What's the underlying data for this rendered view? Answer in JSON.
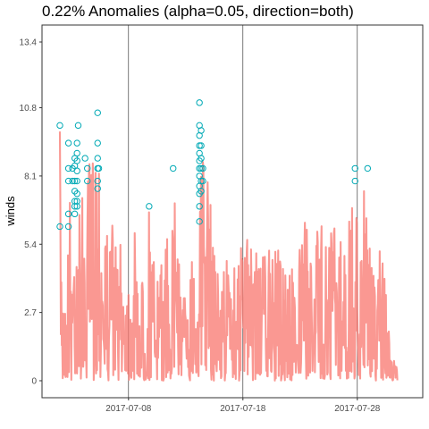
{
  "chart_data": {
    "type": "line",
    "title": "0.22% Anomalies (alpha=0.05, direction=both)",
    "xlabel": "",
    "ylabel": "winds",
    "x_range": [
      "2017-07-02",
      "2017-07-31"
    ],
    "ylim": [
      -0.67,
      14.07
    ],
    "y_ticks": [
      0,
      2.7,
      5.4,
      8.1,
      10.8,
      13.4
    ],
    "y_tick_labels": [
      "0",
      "2.7",
      "5.4",
      "8.1",
      "10.8",
      "13.4"
    ],
    "x_ticks": [
      "2017-07-08",
      "2017-07-18",
      "2017-07-28"
    ],
    "x_tick_labels": [
      "2017-07-08",
      "2017-07-18",
      "2017-07-28"
    ],
    "grid": false,
    "line_color": "#f8766d",
    "line_opacity": 0.75,
    "anomaly_color": "#00a9b5",
    "series": [
      {
        "values": [
          [
            0.0,
            10.1
          ],
          [
            0.15,
            6.1
          ],
          [
            0.5,
            2.7
          ],
          [
            0.75,
            7.0
          ],
          [
            0.9,
            9.4
          ],
          [
            1.0,
            8.1
          ],
          [
            1.1,
            6.7
          ],
          [
            1.2,
            7.6
          ],
          [
            1.3,
            8.5
          ],
          [
            1.4,
            6.8
          ],
          [
            1.5,
            9.0
          ],
          [
            1.6,
            10.1
          ],
          [
            1.7,
            7.2
          ],
          [
            1.8,
            4.0
          ],
          [
            2.0,
            8.3
          ],
          [
            2.2,
            5.0
          ],
          [
            2.5,
            8.6
          ],
          [
            3.2,
            9.0
          ],
          [
            3.4,
            10.5
          ],
          [
            3.6,
            8.4
          ],
          [
            4.0,
            5.8
          ],
          [
            4.5,
            7.2
          ],
          [
            5.0,
            4.8
          ],
          [
            5.5,
            6.0
          ],
          [
            6.0,
            4.4
          ],
          [
            6.5,
            6.2
          ],
          [
            7.0,
            3.6
          ],
          [
            7.8,
            6.8
          ],
          [
            8.5,
            4.2
          ],
          [
            9.3,
            5.5
          ],
          [
            10.0,
            8.4
          ],
          [
            10.5,
            4.6
          ],
          [
            11.0,
            3.2
          ],
          [
            11.5,
            5.4
          ],
          [
            12.0,
            6.1
          ],
          [
            12.1,
            7.0
          ],
          [
            12.2,
            8.3
          ],
          [
            12.3,
            9.0
          ],
          [
            12.4,
            9.8
          ],
          [
            12.5,
            11.0
          ],
          [
            12.7,
            8.1
          ],
          [
            13.0,
            8.3
          ],
          [
            13.4,
            6.0
          ],
          [
            14.0,
            3.5
          ],
          [
            14.5,
            5.5
          ],
          [
            15.0,
            4.0
          ],
          [
            16.0,
            6.0
          ],
          [
            17.0,
            5.0
          ],
          [
            17.5,
            5.5
          ],
          [
            18.5,
            6.0
          ],
          [
            19.5,
            5.0
          ],
          [
            20.5,
            4.5
          ],
          [
            21.5,
            6.5
          ],
          [
            22.0,
            5.2
          ],
          [
            22.5,
            6.4
          ],
          [
            23.3,
            6.2
          ],
          [
            24.2,
            6.2
          ],
          [
            25.0,
            5.0
          ],
          [
            25.5,
            8.3
          ],
          [
            25.7,
            5.8
          ],
          [
            26.5,
            8.4
          ],
          [
            27.0,
            5.5
          ],
          [
            27.5,
            4.2
          ],
          [
            28.0,
            5.4
          ],
          [
            28.5,
            3.7
          ],
          [
            29.0,
            1.0
          ],
          [
            29.5,
            0.5
          ]
        ]
      }
    ],
    "anomalies": [
      [
        0.0,
        10.1
      ],
      [
        0.0,
        6.1
      ],
      [
        0.75,
        9.4
      ],
      [
        0.75,
        8.4
      ],
      [
        0.75,
        7.9
      ],
      [
        0.75,
        6.1
      ],
      [
        0.75,
        6.6
      ],
      [
        1.1,
        8.4
      ],
      [
        1.1,
        7.9
      ],
      [
        1.3,
        8.8
      ],
      [
        1.3,
        8.5
      ],
      [
        1.3,
        7.9
      ],
      [
        1.3,
        7.5
      ],
      [
        1.3,
        7.1
      ],
      [
        1.3,
        6.9
      ],
      [
        1.3,
        6.6
      ],
      [
        1.5,
        9.4
      ],
      [
        1.5,
        9.0
      ],
      [
        1.5,
        8.7
      ],
      [
        1.5,
        8.3
      ],
      [
        1.5,
        7.9
      ],
      [
        1.5,
        7.4
      ],
      [
        1.5,
        7.1
      ],
      [
        1.5,
        6.9
      ],
      [
        1.6,
        10.1
      ],
      [
        2.2,
        8.8
      ],
      [
        2.4,
        8.4
      ],
      [
        2.4,
        7.9
      ],
      [
        3.3,
        10.6
      ],
      [
        3.3,
        9.4
      ],
      [
        3.3,
        8.8
      ],
      [
        3.3,
        8.4
      ],
      [
        3.3,
        7.9
      ],
      [
        3.3,
        7.6
      ],
      [
        3.4,
        8.4
      ],
      [
        7.8,
        6.9
      ],
      [
        9.9,
        8.4
      ],
      [
        12.2,
        11.0
      ],
      [
        12.2,
        10.1
      ],
      [
        12.2,
        9.7
      ],
      [
        12.2,
        9.3
      ],
      [
        12.2,
        9.0
      ],
      [
        12.2,
        8.7
      ],
      [
        12.2,
        8.4
      ],
      [
        12.2,
        8.1
      ],
      [
        12.2,
        7.7
      ],
      [
        12.2,
        7.4
      ],
      [
        12.2,
        6.9
      ],
      [
        12.2,
        6.3
      ],
      [
        12.35,
        9.9
      ],
      [
        12.35,
        9.3
      ],
      [
        12.35,
        8.8
      ],
      [
        12.35,
        8.4
      ],
      [
        12.35,
        7.9
      ],
      [
        12.35,
        7.5
      ],
      [
        12.5,
        7.9
      ],
      [
        12.5,
        8.4
      ],
      [
        25.8,
        8.4
      ],
      [
        25.8,
        7.9
      ],
      [
        26.9,
        8.4
      ]
    ]
  }
}
